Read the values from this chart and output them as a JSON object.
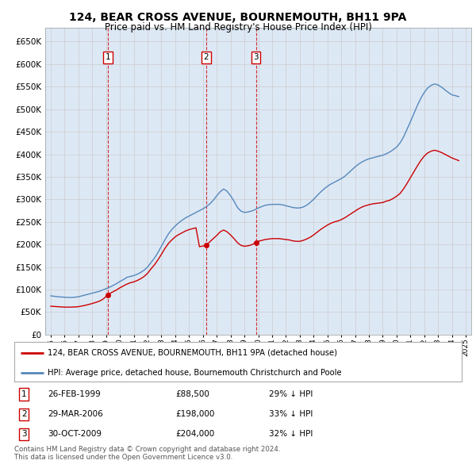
{
  "title": "124, BEAR CROSS AVENUE, BOURNEMOUTH, BH11 9PA",
  "subtitle": "Price paid vs. HM Land Registry's House Price Index (HPI)",
  "legend_line1": "124, BEAR CROSS AVENUE, BOURNEMOUTH, BH11 9PA (detached house)",
  "legend_line2": "HPI: Average price, detached house, Bournemouth Christchurch and Poole",
  "footer1": "Contains HM Land Registry data © Crown copyright and database right 2024.",
  "footer2": "This data is licensed under the Open Government Licence v3.0.",
  "sales": [
    {
      "num": 1,
      "date": "26-FEB-1999",
      "price": 88500,
      "pct": "29% ↓ HPI",
      "year": 1999.15
    },
    {
      "num": 2,
      "date": "29-MAR-2006",
      "price": 198000,
      "pct": "33% ↓ HPI",
      "year": 2006.24
    },
    {
      "num": 3,
      "date": "30-OCT-2009",
      "price": 204000,
      "pct": "32% ↓ HPI",
      "year": 2009.83
    }
  ],
  "red_line_color": "#cc0000",
  "blue_line_color": "#5588bb",
  "grid_color": "#cccccc",
  "bg_color": "#dde8f5",
  "plot_bg": "#ffffff",
  "ylim": [
    0,
    680000
  ],
  "yticks": [
    0,
    50000,
    100000,
    150000,
    200000,
    250000,
    300000,
    350000,
    400000,
    450000,
    500000,
    550000,
    600000,
    650000
  ],
  "xmin": 1994.6,
  "xmax": 2025.4,
  "years_hpi": [
    1995.0,
    1995.25,
    1995.5,
    1995.75,
    1996.0,
    1996.25,
    1996.5,
    1996.75,
    1997.0,
    1997.25,
    1997.5,
    1997.75,
    1998.0,
    1998.25,
    1998.5,
    1998.75,
    1999.0,
    1999.25,
    1999.5,
    1999.75,
    2000.0,
    2000.25,
    2000.5,
    2000.75,
    2001.0,
    2001.25,
    2001.5,
    2001.75,
    2002.0,
    2002.25,
    2002.5,
    2002.75,
    2003.0,
    2003.25,
    2003.5,
    2003.75,
    2004.0,
    2004.25,
    2004.5,
    2004.75,
    2005.0,
    2005.25,
    2005.5,
    2005.75,
    2006.0,
    2006.25,
    2006.5,
    2006.75,
    2007.0,
    2007.25,
    2007.5,
    2007.75,
    2008.0,
    2008.25,
    2008.5,
    2008.75,
    2009.0,
    2009.25,
    2009.5,
    2009.75,
    2010.0,
    2010.25,
    2010.5,
    2010.75,
    2011.0,
    2011.25,
    2011.5,
    2011.75,
    2012.0,
    2012.25,
    2012.5,
    2012.75,
    2013.0,
    2013.25,
    2013.5,
    2013.75,
    2014.0,
    2014.25,
    2014.5,
    2014.75,
    2015.0,
    2015.25,
    2015.5,
    2015.75,
    2016.0,
    2016.25,
    2016.5,
    2016.75,
    2017.0,
    2017.25,
    2017.5,
    2017.75,
    2018.0,
    2018.25,
    2018.5,
    2018.75,
    2019.0,
    2019.25,
    2019.5,
    2019.75,
    2020.0,
    2020.25,
    2020.5,
    2020.75,
    2021.0,
    2021.25,
    2021.5,
    2021.75,
    2022.0,
    2022.25,
    2022.5,
    2022.75,
    2023.0,
    2023.25,
    2023.5,
    2023.75,
    2024.0,
    2024.25,
    2024.5
  ],
  "hpi_values": [
    86000,
    85000,
    84000,
    83500,
    83000,
    82500,
    82500,
    83000,
    84000,
    86000,
    88000,
    90000,
    92000,
    94000,
    96000,
    99000,
    102000,
    105000,
    109000,
    113000,
    118000,
    122000,
    127000,
    129000,
    131000,
    134000,
    138000,
    143000,
    150000,
    160000,
    170000,
    182000,
    196000,
    210000,
    223000,
    233000,
    241000,
    248000,
    254000,
    259000,
    263000,
    267000,
    271000,
    275000,
    279000,
    284000,
    290000,
    298000,
    308000,
    317000,
    323000,
    318000,
    308000,
    296000,
    282000,
    274000,
    271000,
    272000,
    274000,
    277000,
    281000,
    284000,
    287000,
    288000,
    289000,
    289000,
    289000,
    288000,
    286000,
    284000,
    282000,
    281000,
    281000,
    283000,
    287000,
    293000,
    300000,
    308000,
    316000,
    323000,
    329000,
    334000,
    338000,
    342000,
    346000,
    351000,
    358000,
    365000,
    372000,
    378000,
    383000,
    387000,
    390000,
    392000,
    394000,
    396000,
    398000,
    401000,
    405000,
    410000,
    416000,
    425000,
    438000,
    455000,
    472000,
    490000,
    508000,
    524000,
    537000,
    547000,
    553000,
    556000,
    554000,
    549000,
    543000,
    537000,
    532000,
    530000,
    528000
  ],
  "years_red": [
    1995.0,
    1995.25,
    1995.5,
    1995.75,
    1996.0,
    1996.25,
    1996.5,
    1996.75,
    1997.0,
    1997.25,
    1997.5,
    1997.75,
    1998.0,
    1998.25,
    1998.5,
    1998.75,
    1999.15,
    1999.25,
    1999.5,
    1999.75,
    2000.0,
    2000.25,
    2000.5,
    2000.75,
    2001.0,
    2001.25,
    2001.5,
    2001.75,
    2002.0,
    2002.25,
    2002.5,
    2002.75,
    2003.0,
    2003.25,
    2003.5,
    2003.75,
    2004.0,
    2004.25,
    2004.5,
    2004.75,
    2005.0,
    2005.25,
    2005.5,
    2005.75,
    2006.24,
    2006.5,
    2006.75,
    2007.0,
    2007.25,
    2007.5,
    2007.75,
    2008.0,
    2008.25,
    2008.5,
    2008.75,
    2009.0,
    2009.25,
    2009.5,
    2009.83,
    2010.0,
    2010.25,
    2010.5,
    2010.75,
    2011.0,
    2011.25,
    2011.5,
    2011.75,
    2012.0,
    2012.25,
    2012.5,
    2012.75,
    2013.0,
    2013.25,
    2013.5,
    2013.75,
    2014.0,
    2014.25,
    2014.5,
    2014.75,
    2015.0,
    2015.25,
    2015.5,
    2015.75,
    2016.0,
    2016.25,
    2016.5,
    2016.75,
    2017.0,
    2017.25,
    2017.5,
    2017.75,
    2018.0,
    2018.25,
    2018.5,
    2018.75,
    2019.0,
    2019.25,
    2019.5,
    2019.75,
    2020.0,
    2020.25,
    2020.5,
    2020.75,
    2021.0,
    2021.25,
    2021.5,
    2021.75,
    2022.0,
    2022.25,
    2022.5,
    2022.75,
    2023.0,
    2023.25,
    2023.5,
    2023.75,
    2024.0,
    2024.25,
    2024.5
  ],
  "red_values": [
    63000,
    62500,
    62000,
    61500,
    61000,
    61000,
    61000,
    61500,
    62000,
    63500,
    65000,
    67000,
    69000,
    71500,
    74000,
    78000,
    88500,
    91000,
    95000,
    99000,
    104000,
    108000,
    112000,
    115000,
    117000,
    120000,
    124000,
    129000,
    136000,
    146000,
    155000,
    166000,
    178000,
    191000,
    202000,
    210000,
    217000,
    222000,
    226000,
    230000,
    233000,
    235000,
    237000,
    195000,
    198000,
    206000,
    213000,
    220000,
    228000,
    232000,
    228000,
    221000,
    213000,
    204000,
    198000,
    196000,
    197000,
    199000,
    204000,
    207000,
    209000,
    211000,
    212000,
    213000,
    213000,
    213000,
    212000,
    211000,
    210000,
    208000,
    207000,
    207000,
    209000,
    212000,
    216000,
    221000,
    227000,
    233000,
    238000,
    243000,
    247000,
    250000,
    252000,
    255000,
    259000,
    264000,
    269000,
    274000,
    279000,
    283000,
    286000,
    288000,
    290000,
    291000,
    292000,
    293000,
    296000,
    298000,
    302000,
    307000,
    313000,
    323000,
    335000,
    348000,
    361000,
    374000,
    386000,
    396000,
    403000,
    407000,
    409000,
    407000,
    404000,
    400000,
    396000,
    392000,
    389000,
    386000
  ]
}
